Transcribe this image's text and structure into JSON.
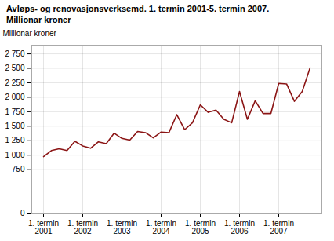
{
  "chart_data": {
    "type": "line",
    "title": "Avløps- og renovasjonsverksemd. 1. termin 2001-5. termin 2007.",
    "subtitle": "Millionar kroner",
    "ylabel": "Millionar kroner",
    "color": "#8b1515",
    "grid": true,
    "categories": [
      "1. termin\n2001",
      null,
      null,
      null,
      null,
      "1. termin\n2002",
      null,
      null,
      null,
      null,
      "1. termin\n2003",
      null,
      null,
      null,
      null,
      "1. termin\n2004",
      null,
      null,
      null,
      null,
      "1. termin\n2005",
      null,
      null,
      null,
      null,
      "1. termin\n2006",
      null,
      null,
      null,
      null,
      "1. termin\n2007",
      null,
      null,
      null,
      null
    ],
    "values": [
      975,
      1080,
      1110,
      1080,
      1240,
      1160,
      1120,
      1230,
      1200,
      1380,
      1290,
      1260,
      1410,
      1390,
      1300,
      1400,
      1390,
      1700,
      1440,
      1560,
      1870,
      1740,
      1780,
      1620,
      1560,
      2100,
      1620,
      1940,
      1720,
      1720,
      2240,
      2230,
      1930,
      2100,
      2510
    ],
    "ylim": [
      0,
      2900
    ],
    "yticks": [
      0,
      750,
      {
        "value": 1000,
        "label": "1 000"
      },
      {
        "value": 1250,
        "label": "1 250"
      },
      {
        "value": 1500,
        "label": "1 500"
      },
      {
        "value": 1750,
        "label": "1 750"
      },
      {
        "value": 2000,
        "label": "2 000"
      },
      {
        "value": 2250,
        "label": "2 250"
      },
      {
        "value": 2500,
        "label": "2 500"
      },
      {
        "value": 2750,
        "label": "2 750"
      }
    ]
  }
}
